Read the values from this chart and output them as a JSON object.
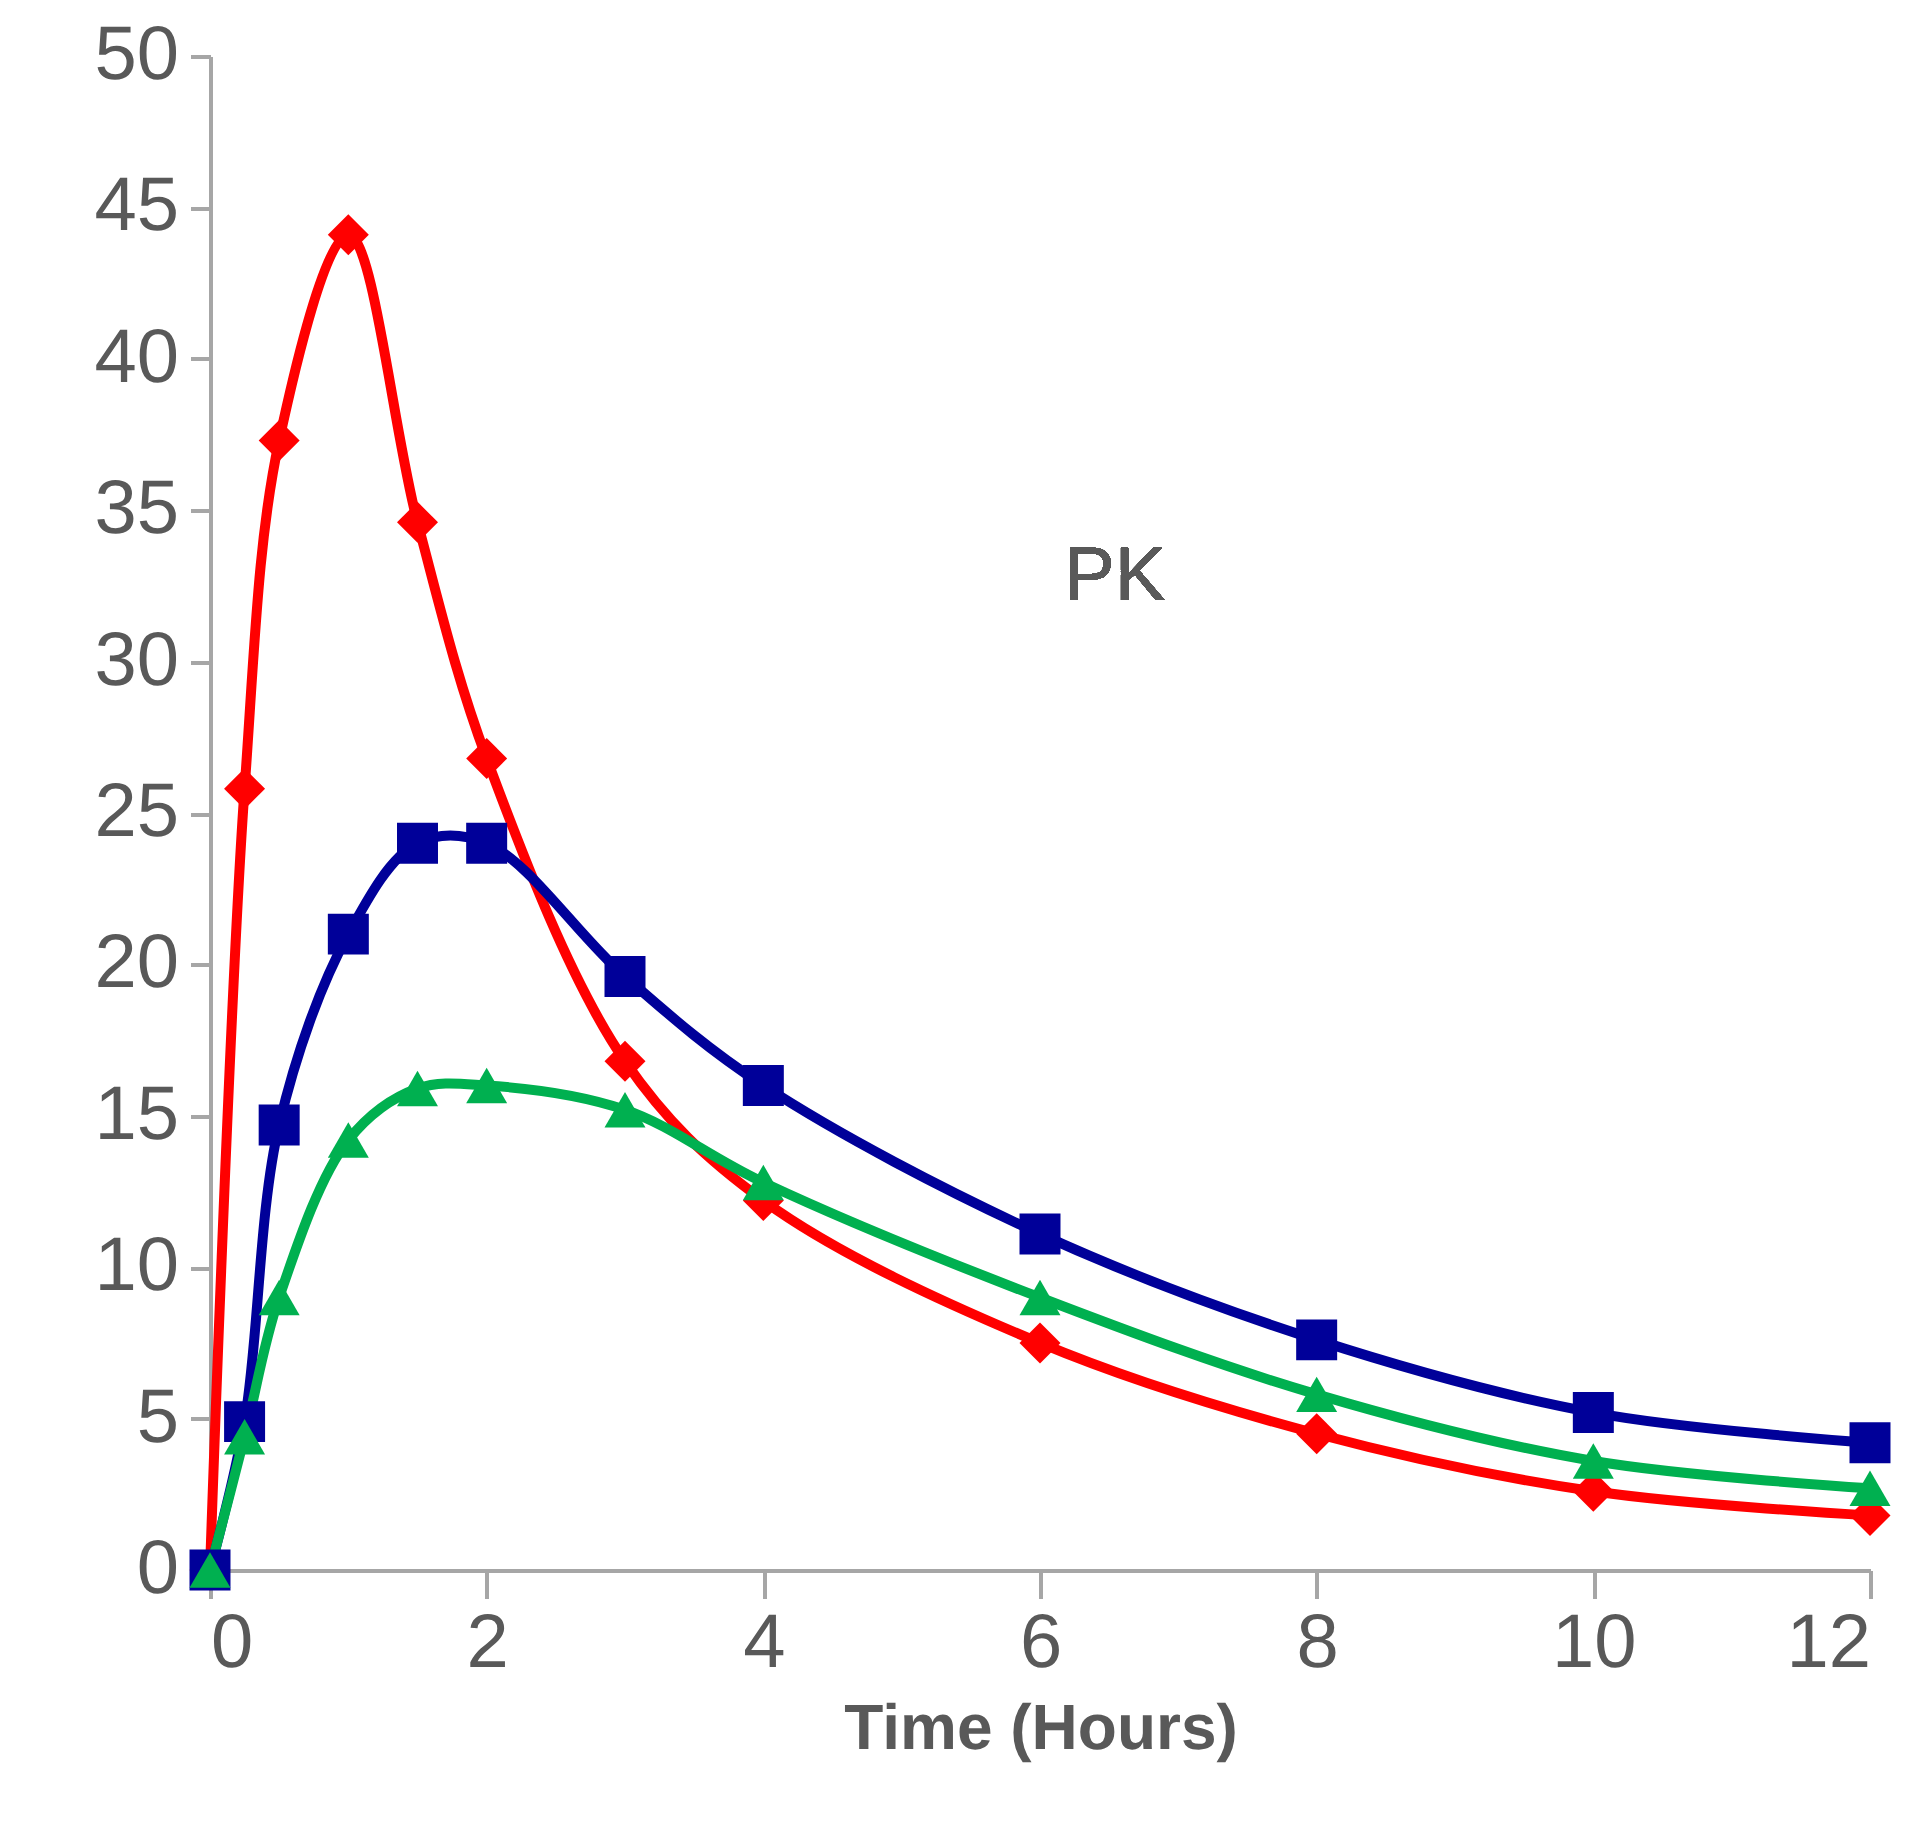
{
  "chart_data": {
    "type": "line",
    "xlabel": "Time (Hours)",
    "annotations": [
      "PK"
    ],
    "x": [
      0,
      0.25,
      0.5,
      1,
      1.5,
      2,
      3,
      4,
      6,
      8,
      10,
      12
    ],
    "series": [
      {
        "color": "#ff0000",
        "marker": "diamond",
        "values": [
          0,
          25.8,
          37.3,
          44.1,
          34.6,
          26.8,
          16.8,
          12.2,
          7.5,
          4.5,
          2.6,
          1.8
        ]
      },
      {
        "color": "#000099",
        "marker": "square",
        "values": [
          0,
          4.9,
          14.7,
          21.0,
          24.0,
          24.0,
          19.6,
          16.0,
          11.1,
          7.6,
          5.2,
          4.2
        ]
      },
      {
        "color": "#00b050",
        "marker": "triangle",
        "values": [
          0,
          4.4,
          9.0,
          14.2,
          15.9,
          16.0,
          15.2,
          12.8,
          9.0,
          5.8,
          3.6,
          2.7
        ]
      }
    ],
    "xlim": [
      0,
      12
    ],
    "xticks": [
      0,
      2,
      4,
      6,
      8,
      10,
      12
    ],
    "ylim": [
      0,
      50
    ],
    "yticks": [
      0,
      5,
      10,
      15,
      20,
      25,
      30,
      35,
      40,
      45,
      50
    ],
    "grid": false,
    "legend": false,
    "line_style": "solid"
  }
}
